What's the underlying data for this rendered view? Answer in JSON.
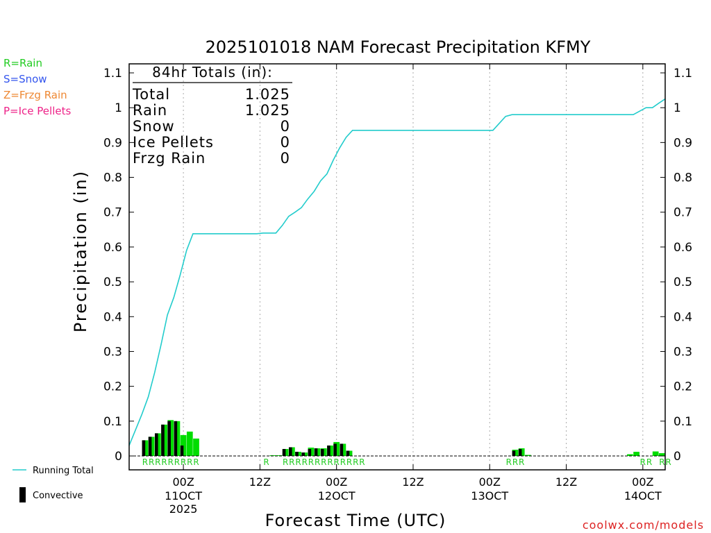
{
  "chart_data": {
    "type": "bar",
    "title": "2025101018 NAM Forecast Precipitation KFMY",
    "xlabel": "Forecast Time (UTC)",
    "ylabel": "Precipitation (in)",
    "ylim": [
      0,
      1.1
    ],
    "y_ticks": [
      0,
      0.1,
      0.2,
      0.3,
      0.4,
      0.5,
      0.6,
      0.7,
      0.8,
      0.9,
      1,
      1.1
    ],
    "y_tick_labels": [
      "0",
      "0.1",
      "0.2",
      "0.3",
      "0.4",
      "0.5",
      "0.6",
      "0.7",
      "0.8",
      "0.9",
      "1",
      "1.1"
    ],
    "xlim_hours": [
      -2.5,
      81.5
    ],
    "x_ticks": [
      {
        "hour": 6,
        "label": "00Z",
        "sub": "11OCT",
        "sub2": "2025"
      },
      {
        "hour": 18,
        "label": "12Z",
        "sub": "",
        "sub2": ""
      },
      {
        "hour": 30,
        "label": "00Z",
        "sub": "12OCT",
        "sub2": ""
      },
      {
        "hour": 42,
        "label": "12Z",
        "sub": "",
        "sub2": ""
      },
      {
        "hour": 54,
        "label": "00Z",
        "sub": "13OCT",
        "sub2": ""
      },
      {
        "hour": 66,
        "label": "12Z",
        "sub": "",
        "sub2": ""
      },
      {
        "hour": 78,
        "label": "00Z",
        "sub": "14OCT",
        "sub2": ""
      }
    ],
    "gridlines": "vertical dotted at tick positions",
    "totals": {
      "header": "84hr Totals (in):",
      "rows": [
        {
          "name": "Total",
          "value": "1.025"
        },
        {
          "name": "Rain",
          "value": "1.025"
        },
        {
          "name": "Snow",
          "value": "0"
        },
        {
          "name": "Ice Pellets",
          "value": "0"
        },
        {
          "name": "Frzg Rain",
          "value": "0"
        }
      ]
    },
    "type_legend": [
      {
        "text": "R=Rain",
        "color": "#22cc22"
      },
      {
        "text": "S=Snow",
        "color": "#3355ee"
      },
      {
        "text": "Z=Frzg Rain",
        "color": "#ee8833"
      },
      {
        "text": "P=Ice Pellets",
        "color": "#ee2288"
      }
    ],
    "series_legend": [
      {
        "name": "Running Total",
        "kind": "line",
        "color": "#22cccc"
      },
      {
        "name": "Convective",
        "kind": "bar",
        "color": "#000000"
      }
    ],
    "colors": {
      "precip": "#00dd00",
      "convective": "#000000",
      "running_total": "#22cccc"
    },
    "bars": {
      "hours": [
        0,
        1,
        2,
        3,
        4,
        5,
        6,
        7,
        8,
        9,
        10,
        11,
        12,
        13,
        14,
        15,
        16,
        17,
        18,
        19,
        20,
        21,
        22,
        23,
        24,
        25,
        26,
        27,
        28,
        29,
        30,
        31,
        32,
        33,
        34,
        35,
        36,
        37,
        38,
        39,
        40,
        41,
        42,
        43,
        44,
        45,
        46,
        47,
        48,
        49,
        50,
        51,
        52,
        53,
        54,
        55,
        56,
        57,
        58,
        59,
        60,
        61,
        62,
        63,
        64,
        65,
        66,
        67,
        68,
        69,
        70,
        71,
        72,
        73,
        74,
        75,
        76,
        77,
        78,
        79,
        80,
        81
      ],
      "total": [
        0.045,
        0.055,
        0.065,
        0.09,
        0.103,
        0.1,
        0.06,
        0.07,
        0.05,
        0,
        0,
        0,
        0,
        0,
        0,
        0,
        0,
        0,
        0,
        0,
        0.002,
        0.002,
        0.02,
        0.025,
        0.012,
        0.01,
        0.024,
        0.022,
        0.022,
        0.03,
        0.04,
        0.035,
        0.015,
        0,
        0,
        0,
        0,
        0,
        0,
        0,
        0,
        0,
        0,
        0,
        0,
        0,
        0,
        0,
        0,
        0,
        0,
        0,
        0,
        0,
        0,
        0,
        0,
        0,
        0.018,
        0.022,
        0.003,
        0,
        0,
        0,
        0,
        0,
        0,
        0,
        0,
        0,
        0,
        0,
        0,
        0,
        0,
        0,
        0.005,
        0.012,
        0,
        0,
        0.013,
        0.008
      ],
      "convective": [
        0.045,
        0.055,
        0.065,
        0.09,
        0.1,
        0.1,
        0.03,
        0,
        0,
        0,
        0,
        0,
        0,
        0,
        0,
        0,
        0,
        0,
        0,
        0,
        0,
        0,
        0.02,
        0.025,
        0.012,
        0.01,
        0.02,
        0.022,
        0.02,
        0.03,
        0.035,
        0.035,
        0.015,
        0,
        0,
        0,
        0,
        0,
        0,
        0,
        0,
        0,
        0,
        0,
        0,
        0,
        0,
        0,
        0,
        0,
        0,
        0,
        0,
        0,
        0,
        0,
        0,
        0,
        0.015,
        0.02,
        0,
        0,
        0,
        0,
        0,
        0,
        0,
        0,
        0,
        0,
        0,
        0,
        0,
        0,
        0,
        0,
        0,
        0,
        0,
        0,
        0,
        0
      ]
    },
    "running_total": {
      "hours": [
        -2.5,
        -1.5,
        -0.5,
        0.5,
        1.5,
        2.5,
        3.5,
        4.5,
        5.5,
        6.5,
        7.5,
        8.5,
        9.5,
        17.5,
        18.5,
        19.5,
        20.5,
        21.5,
        22.5,
        23.5,
        24.5,
        25.5,
        26.5,
        27.5,
        28.5,
        29.5,
        30.5,
        31.5,
        32.5,
        54.5,
        55.5,
        56.5,
        57.5,
        58.5,
        76.5,
        77.5,
        78.5,
        79.5,
        80.5,
        81.5
      ],
      "values": [
        0.03,
        0.075,
        0.12,
        0.17,
        0.24,
        0.32,
        0.405,
        0.455,
        0.52,
        0.59,
        0.638,
        0.638,
        0.638,
        0.638,
        0.64,
        0.64,
        0.64,
        0.662,
        0.688,
        0.7,
        0.713,
        0.738,
        0.76,
        0.79,
        0.81,
        0.85,
        0.885,
        0.915,
        0.935,
        0.935,
        0.955,
        0.975,
        0.98,
        0.98,
        0.98,
        0.99,
        1.0,
        1.0,
        1.013,
        1.025
      ]
    },
    "type_labels": {
      "hours": [
        0,
        1,
        2,
        3,
        4,
        5,
        6,
        7,
        8,
        19,
        22,
        23,
        24,
        25,
        26,
        27,
        28,
        29,
        30,
        31,
        32,
        33,
        34,
        57,
        58,
        59,
        78,
        79,
        81,
        82
      ],
      "text": "R"
    },
    "credit": "coolwx.com/models"
  }
}
